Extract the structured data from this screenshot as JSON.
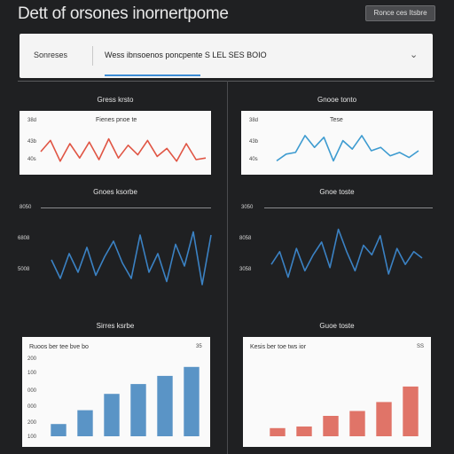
{
  "app": {
    "title": "Dett of orsones inornertpome"
  },
  "toolbar": {
    "button_label": "Ronce ces Itsbre"
  },
  "filter_bar": {
    "label": "Sonreses",
    "text": "Wess ibnsoenos poncpente S LEL SES BOIO"
  },
  "panels": [
    {
      "title": "Gress krsto",
      "y_labels": [
        "38d",
        "43b",
        "40s"
      ],
      "chart_title": "Fienes pnoe te",
      "color": "#e05544"
    },
    {
      "title": "Gnooe tonto",
      "y_labels": [
        "38d",
        "43b",
        "40s"
      ],
      "chart_title": "Tese",
      "color": "#3d9bd0"
    },
    {
      "title": "Gnoes ksorbe",
      "y_labels": [
        "8050",
        "6808",
        "5008"
      ],
      "color": "#3b82c4"
    },
    {
      "title": "Gnoe toste",
      "y_labels": [
        "3050",
        "8058",
        "3058"
      ],
      "color": "#3b82c4"
    },
    {
      "title": "Sirres ksrbe",
      "y_labels": [
        "200",
        "100",
        "000",
        "000",
        "200",
        "100"
      ],
      "chart_title": "Ruoos ber tee bve bo",
      "corner": "35",
      "color": "#5a94c6"
    },
    {
      "title": "Guoe toste",
      "y_labels": [],
      "chart_title": "Kesis ber toe tws ior",
      "corner": "SS",
      "color": "#e07468"
    }
  ],
  "chart_data": [
    {
      "type": "line",
      "series": [
        {
          "values": [
            0.5,
            0.85,
            0.2,
            0.75,
            0.3,
            0.8,
            0.25,
            0.9,
            0.3,
            0.7,
            0.4,
            0.85,
            0.35,
            0.6,
            0.2,
            0.75,
            0.25,
            0.3
          ]
        }
      ]
    },
    {
      "type": "line",
      "series": [
        {
          "values": [
            0.2,
            0.4,
            0.45,
            0.95,
            0.6,
            0.9,
            0.2,
            0.8,
            0.55,
            0.95,
            0.5,
            0.6,
            0.35,
            0.45,
            0.3,
            0.5
          ]
        }
      ]
    },
    {
      "type": "line",
      "series": [
        {
          "values": [
            0.5,
            0.2,
            0.6,
            0.3,
            0.7,
            0.25,
            0.55,
            0.8,
            0.45,
            0.2,
            0.9,
            0.3,
            0.6,
            0.15,
            0.75,
            0.4,
            0.95,
            0.1,
            0.9
          ]
        }
      ]
    },
    {
      "type": "line",
      "series": [
        {
          "values": [
            0.4,
            0.6,
            0.2,
            0.65,
            0.3,
            0.55,
            0.75,
            0.35,
            0.95,
            0.6,
            0.3,
            0.7,
            0.55,
            0.85,
            0.25,
            0.65,
            0.4,
            0.6,
            0.5
          ]
        }
      ]
    },
    {
      "type": "bar",
      "values": [
        0.15,
        0.32,
        0.52,
        0.64,
        0.74,
        0.85
      ]
    },
    {
      "type": "bar",
      "values": [
        0.1,
        0.12,
        0.25,
        0.31,
        0.42,
        0.61
      ]
    }
  ]
}
